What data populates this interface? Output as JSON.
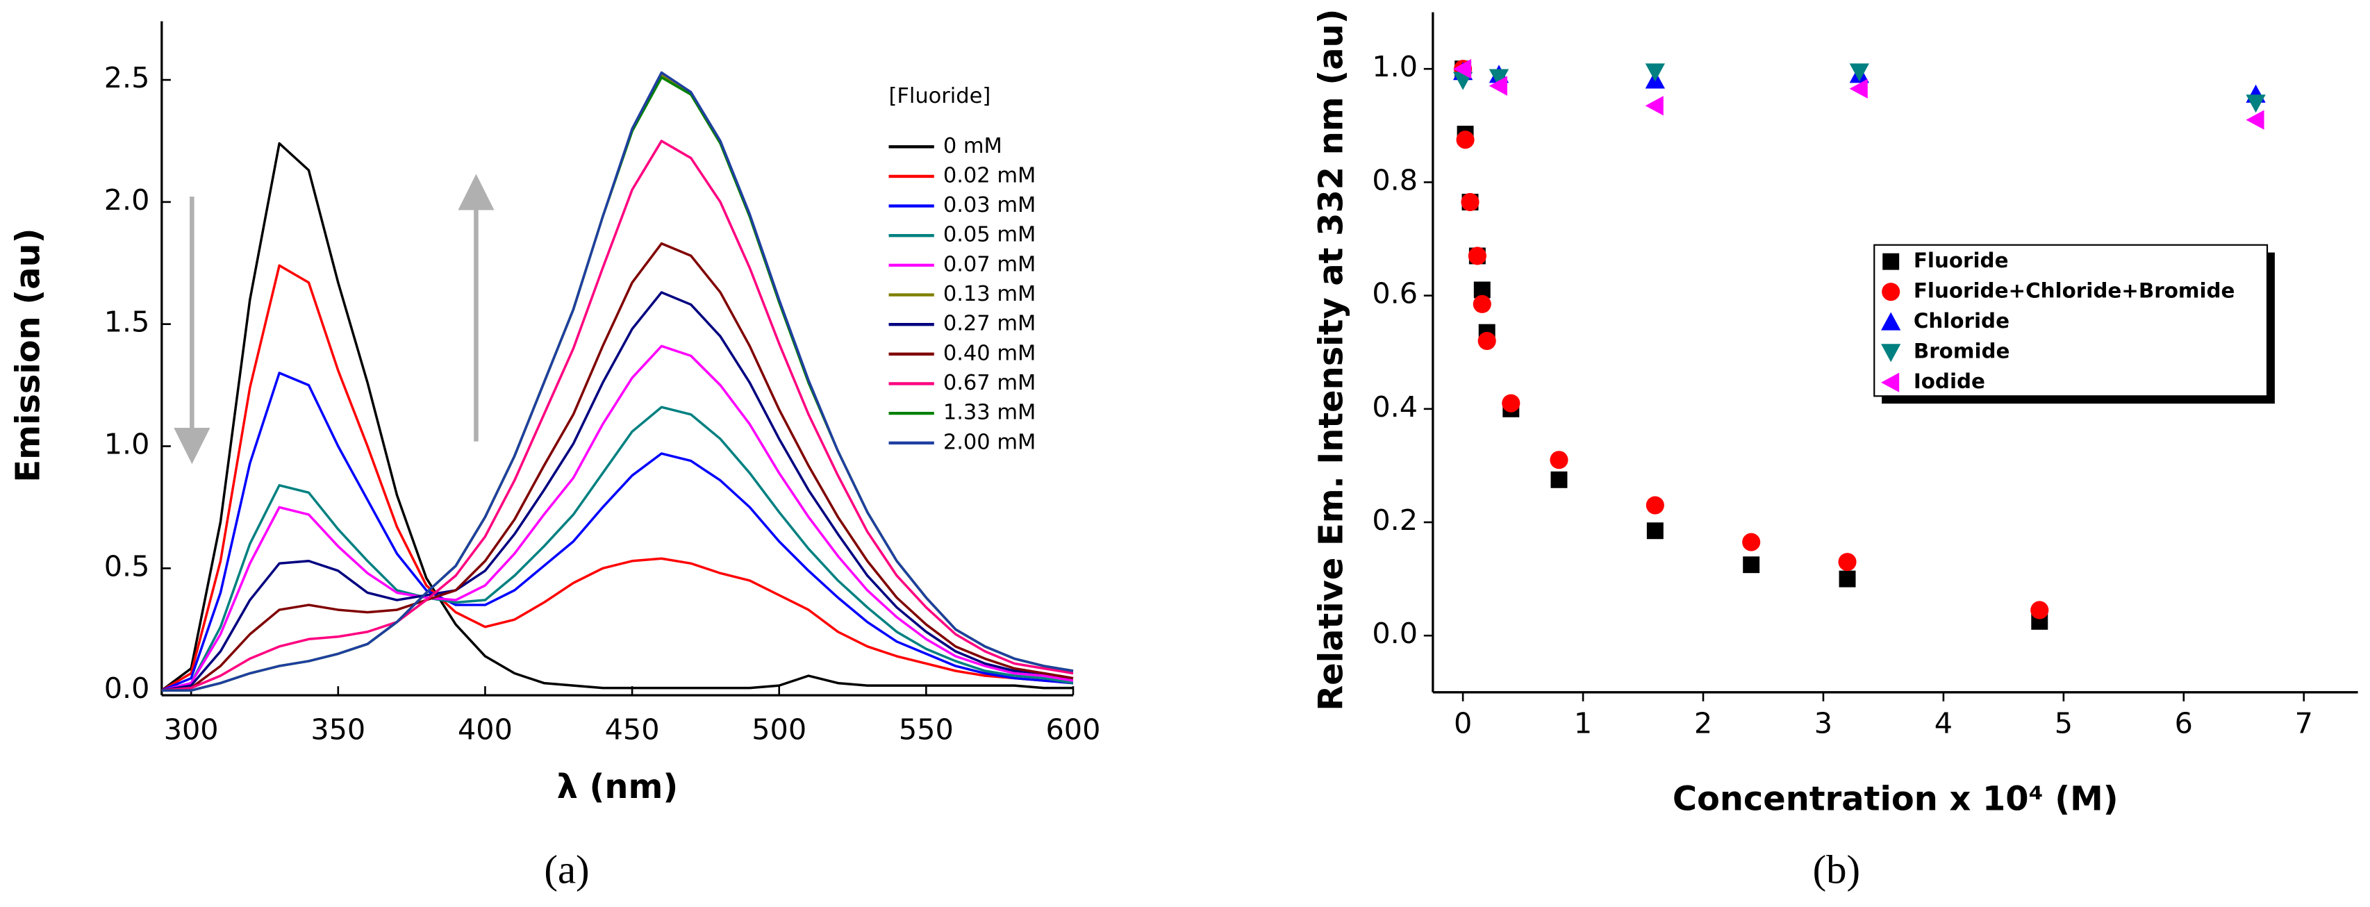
{
  "chart_data": [
    {
      "type": "line",
      "caption": "(a)",
      "xlabel": "λ (nm)",
      "ylabel": "Emission (au)",
      "legend_title": "[Fluoride]",
      "xlim": [
        290,
        600
      ],
      "xticks": [
        300,
        350,
        400,
        450,
        500,
        550,
        600
      ],
      "ylim": [
        -0.02,
        2.74
      ],
      "yticks": [
        {
          "value": 0,
          "label": "0.0"
        },
        0.5,
        {
          "value": 1,
          "label": "1.0"
        },
        1.5,
        {
          "value": 2,
          "label": "2.0"
        },
        2.5
      ],
      "x": [
        290,
        300,
        310,
        320,
        330,
        340,
        350,
        360,
        370,
        380,
        390,
        400,
        410,
        420,
        430,
        440,
        450,
        460,
        470,
        480,
        490,
        500,
        510,
        520,
        530,
        540,
        550,
        560,
        570,
        580,
        590,
        600
      ],
      "series": [
        {
          "name": "0 mM",
          "color": "#000000",
          "values": [
            0,
            0.09,
            0.69,
            1.6,
            2.24,
            2.13,
            1.67,
            1.26,
            0.8,
            0.46,
            0.27,
            0.14,
            0.07,
            0.03,
            0.02,
            0.01,
            0.01,
            0.01,
            0.01,
            0.01,
            0.01,
            0.02,
            0.06,
            0.03,
            0.02,
            0.02,
            0.02,
            0.02,
            0.02,
            0.02,
            0.01,
            0.01
          ]
        },
        {
          "name": "0.02 mM",
          "color": "#ff0000",
          "values": [
            0,
            0.07,
            0.53,
            1.24,
            1.74,
            1.67,
            1.31,
            1.0,
            0.67,
            0.43,
            0.32,
            0.26,
            0.29,
            0.36,
            0.44,
            0.5,
            0.53,
            0.54,
            0.52,
            0.48,
            0.45,
            0.39,
            0.33,
            0.24,
            0.18,
            0.14,
            0.11,
            0.08,
            0.06,
            0.05,
            0.04,
            0.03
          ]
        },
        {
          "name": "0.03 mM",
          "color": "#0000ff",
          "values": [
            0,
            0.05,
            0.4,
            0.93,
            1.3,
            1.25,
            1.0,
            0.78,
            0.56,
            0.41,
            0.35,
            0.35,
            0.41,
            0.51,
            0.61,
            0.75,
            0.88,
            0.97,
            0.94,
            0.86,
            0.75,
            0.61,
            0.49,
            0.38,
            0.28,
            0.2,
            0.15,
            0.1,
            0.07,
            0.05,
            0.04,
            0.03
          ]
        },
        {
          "name": "0.05 mM",
          "color": "#008080",
          "values": [
            0,
            0.03,
            0.26,
            0.6,
            0.84,
            0.81,
            0.66,
            0.53,
            0.41,
            0.38,
            0.36,
            0.37,
            0.47,
            0.59,
            0.72,
            0.89,
            1.06,
            1.16,
            1.13,
            1.03,
            0.89,
            0.73,
            0.58,
            0.45,
            0.34,
            0.24,
            0.17,
            0.12,
            0.08,
            0.06,
            0.05,
            0.03
          ]
        },
        {
          "name": "0.07 mM",
          "color": "#ff00ff",
          "values": [
            0,
            0.03,
            0.23,
            0.52,
            0.75,
            0.72,
            0.59,
            0.48,
            0.4,
            0.38,
            0.37,
            0.43,
            0.56,
            0.72,
            0.87,
            1.09,
            1.28,
            1.41,
            1.37,
            1.25,
            1.09,
            0.89,
            0.71,
            0.55,
            0.41,
            0.3,
            0.21,
            0.14,
            0.1,
            0.07,
            0.06,
            0.04
          ]
        },
        {
          "name": "0.13 mM",
          "color": "#808000",
          "values": [
            0,
            0,
            0.03,
            0.07,
            0.1,
            0.12,
            0.15,
            0.19,
            0.28,
            0.4,
            0.51,
            0.71,
            0.96,
            1.26,
            1.56,
            1.94,
            2.29,
            2.52,
            2.44,
            2.24,
            1.94,
            1.59,
            1.26,
            0.98,
            0.73,
            0.53,
            0.38,
            0.25,
            0.18,
            0.13,
            0.1,
            0.08
          ]
        },
        {
          "name": "0.27 mM",
          "color": "#000080",
          "values": [
            0,
            0.02,
            0.16,
            0.37,
            0.52,
            0.53,
            0.49,
            0.4,
            0.37,
            0.39,
            0.41,
            0.49,
            0.64,
            0.82,
            1.01,
            1.26,
            1.48,
            1.63,
            1.58,
            1.45,
            1.26,
            1.03,
            0.82,
            0.64,
            0.47,
            0.34,
            0.24,
            0.16,
            0.11,
            0.08,
            0.07,
            0.05
          ]
        },
        {
          "name": "0.40 mM",
          "color": "#800000",
          "values": [
            0,
            0.01,
            0.1,
            0.23,
            0.33,
            0.35,
            0.33,
            0.32,
            0.33,
            0.37,
            0.41,
            0.53,
            0.7,
            0.92,
            1.13,
            1.41,
            1.67,
            1.83,
            1.78,
            1.63,
            1.41,
            1.15,
            0.92,
            0.71,
            0.53,
            0.38,
            0.27,
            0.18,
            0.13,
            0.09,
            0.07,
            0.05
          ]
        },
        {
          "name": "0.67 mM",
          "color": "#ff0080",
          "values": [
            0,
            0.01,
            0.06,
            0.13,
            0.18,
            0.21,
            0.22,
            0.24,
            0.28,
            0.37,
            0.47,
            0.63,
            0.86,
            1.13,
            1.4,
            1.73,
            2.05,
            2.25,
            2.18,
            2.0,
            1.73,
            1.42,
            1.13,
            0.88,
            0.65,
            0.47,
            0.34,
            0.23,
            0.16,
            0.11,
            0.09,
            0.07
          ]
        },
        {
          "name": "1.33 mM",
          "color": "#008000",
          "values": [
            0,
            0,
            0.03,
            0.07,
            0.1,
            0.12,
            0.15,
            0.19,
            0.28,
            0.4,
            0.51,
            0.71,
            0.96,
            1.26,
            1.56,
            1.94,
            2.29,
            2.51,
            2.44,
            2.24,
            1.94,
            1.59,
            1.26,
            0.98,
            0.73,
            0.53,
            0.38,
            0.25,
            0.18,
            0.13,
            0.1,
            0.08
          ]
        },
        {
          "name": "2.00 mM",
          "color": "#1f3fa0",
          "values": [
            0,
            0,
            0.03,
            0.07,
            0.1,
            0.12,
            0.15,
            0.19,
            0.28,
            0.4,
            0.51,
            0.71,
            0.96,
            1.26,
            1.56,
            1.94,
            2.3,
            2.53,
            2.45,
            2.25,
            1.95,
            1.6,
            1.27,
            0.98,
            0.73,
            0.53,
            0.38,
            0.25,
            0.18,
            0.13,
            0.1,
            0.08
          ]
        }
      ]
    },
    {
      "type": "scatter",
      "caption": "(b)",
      "xlabel": "Concentration x 10⁴ (M)",
      "ylabel": "Relative Em. Intensity at 332 nm (au)",
      "xlim": [
        -0.25,
        7.45
      ],
      "xticks": [
        0,
        1,
        2,
        3,
        4,
        5,
        6,
        7
      ],
      "ylim": [
        -0.1,
        1.1
      ],
      "yticks": [
        {
          "value": 0,
          "label": "0.0"
        },
        0.2,
        0.4,
        0.6,
        0.8,
        {
          "value": 1,
          "label": "1.0"
        }
      ],
      "series": [
        {
          "name": "Fluoride",
          "color": "#000000",
          "marker": "square",
          "x": [
            0,
            0.02,
            0.06,
            0.12,
            0.16,
            0.2,
            0.4,
            0.8,
            1.6,
            2.4,
            3.2,
            4.8
          ],
          "values": [
            1.0,
            0.885,
            0.765,
            0.67,
            0.61,
            0.535,
            0.4,
            0.275,
            0.185,
            0.125,
            0.1,
            0.025
          ]
        },
        {
          "name": "Fluoride+Chloride+Bromide",
          "color": "#ff0000",
          "marker": "circle",
          "x": [
            0,
            0.02,
            0.06,
            0.12,
            0.16,
            0.2,
            0.4,
            0.8,
            1.6,
            2.4,
            3.2,
            4.8
          ],
          "values": [
            1.0,
            0.875,
            0.765,
            0.67,
            0.585,
            0.52,
            0.41,
            0.31,
            0.23,
            0.165,
            0.13,
            0.045
          ]
        },
        {
          "name": "Chloride",
          "color": "#0000ff",
          "marker": "triangle-up",
          "x": [
            0,
            0.3,
            1.6,
            3.3,
            6.6
          ],
          "values": [
            0.995,
            0.99,
            0.98,
            0.99,
            0.955
          ]
        },
        {
          "name": "Bromide",
          "color": "#008080",
          "marker": "triangle-down",
          "x": [
            0,
            0.3,
            1.6,
            3.3,
            6.6
          ],
          "values": [
            0.98,
            0.985,
            0.995,
            0.995,
            0.94
          ]
        },
        {
          "name": "Iodide",
          "color": "#ff00ff",
          "marker": "triangle-left",
          "x": [
            0,
            0.3,
            1.6,
            3.3,
            6.6
          ],
          "values": [
            1.0,
            0.97,
            0.935,
            0.965,
            0.91
          ]
        }
      ]
    }
  ]
}
